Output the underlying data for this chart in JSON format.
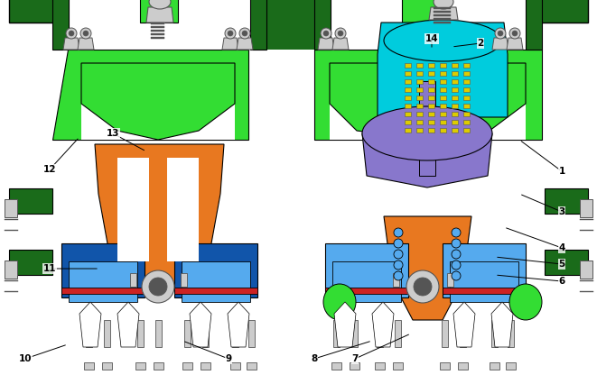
{
  "bg_color": "#ffffff",
  "dark_green": "#1a6b1a",
  "bright_green": "#33dd33",
  "orange": "#e87820",
  "blue_light": "#55aaee",
  "blue_dark": "#1155aa",
  "cyan": "#00ccdd",
  "purple": "#8877cc",
  "red": "#cc2222",
  "gray": "#aaaaaa",
  "gray_light": "#cccccc",
  "gray_dark": "#555555",
  "yellow": "#ddcc00",
  "white": "#ffffff",
  "black": "#000000"
}
